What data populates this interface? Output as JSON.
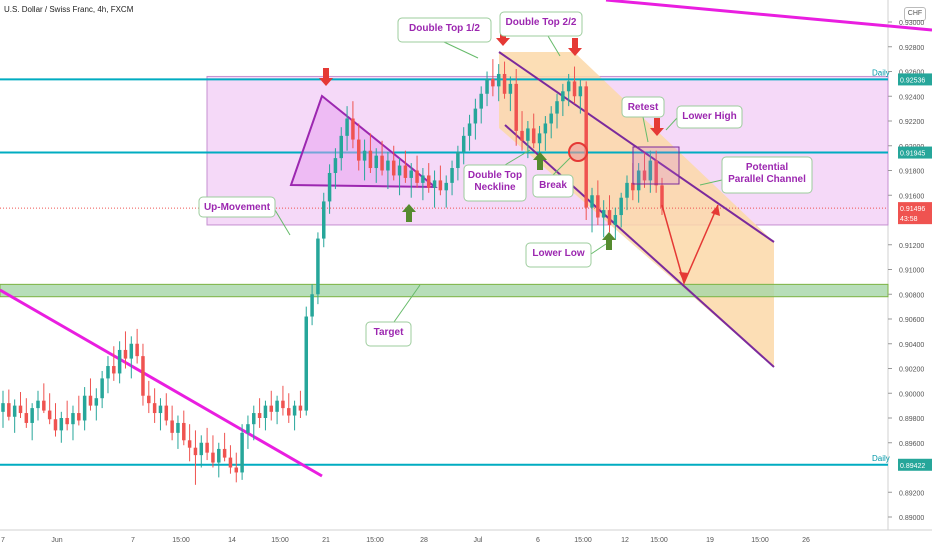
{
  "title": "U.S. Dollar / Swiss Franc, 4h, FXCM",
  "currency": "CHF",
  "chart_data": {
    "type": "candlestick",
    "title": "U.S. Dollar / Swiss Franc, 4h, FXCM",
    "y_ticks": [
      "0.93000",
      "0.92800",
      "0.92600",
      "0.92400",
      "0.92200",
      "0.92000",
      "0.91800",
      "0.91600",
      "0.91200",
      "0.91000",
      "0.90800",
      "0.90600",
      "0.90400",
      "0.90200",
      "0.90000",
      "0.89800",
      "0.89600",
      "0.89200",
      "0.89000"
    ],
    "y_tick_values": [
      0.93,
      0.928,
      0.926,
      0.924,
      0.922,
      0.92,
      0.918,
      0.916,
      0.912,
      0.91,
      0.908,
      0.906,
      0.904,
      0.902,
      0.9,
      0.898,
      0.896,
      0.892,
      0.89
    ],
    "x_ticks": [
      "7",
      "Jun",
      "7",
      "15:00",
      "14",
      "15:00",
      "21",
      "15:00",
      "28",
      "Jul",
      "6",
      "15:00",
      "12",
      "15:00",
      "19",
      "15:00",
      "26"
    ],
    "price_labels": [
      {
        "text": "0.92536",
        "value": 0.92536,
        "bg": "#26a69a"
      },
      {
        "text": "0.91945",
        "value": 0.91945,
        "bg": "#26a69a"
      },
      {
        "text": "0.91496",
        "value": 0.91496,
        "bg": "#ef5350"
      },
      {
        "text": "43:58",
        "value": 0.91415,
        "bg": "#ef5350"
      },
      {
        "text": "0.89422",
        "value": 0.89422,
        "bg": "#26a69a"
      }
    ],
    "levels": [
      {
        "value": 0.92536,
        "label": "Daily",
        "color": "#00acc1"
      },
      {
        "value": 0.91945,
        "label": "",
        "color": "#00acc1"
      },
      {
        "value": 0.89422,
        "label": "Daily",
        "color": "#00acc1"
      }
    ],
    "current_price": 0.91496,
    "zones": {
      "range_top": 0.9256,
      "range_bottom": 0.9136,
      "target_top": 0.9088,
      "target_bottom": 0.9078
    },
    "candles": [
      {
        "o": 0.8985,
        "h": 0.9002,
        "l": 0.8972,
        "c": 0.8992
      },
      {
        "o": 0.8992,
        "h": 0.9003,
        "l": 0.8978,
        "c": 0.8981
      },
      {
        "o": 0.8981,
        "h": 0.8995,
        "l": 0.8968,
        "c": 0.899
      },
      {
        "o": 0.899,
        "h": 0.9001,
        "l": 0.898,
        "c": 0.8984
      },
      {
        "o": 0.8984,
        "h": 0.8996,
        "l": 0.8972,
        "c": 0.8976
      },
      {
        "o": 0.8976,
        "h": 0.8992,
        "l": 0.8962,
        "c": 0.8988
      },
      {
        "o": 0.8988,
        "h": 0.9002,
        "l": 0.8978,
        "c": 0.8994
      },
      {
        "o": 0.8994,
        "h": 0.9008,
        "l": 0.8984,
        "c": 0.8986
      },
      {
        "o": 0.8986,
        "h": 0.9,
        "l": 0.8975,
        "c": 0.8979
      },
      {
        "o": 0.8979,
        "h": 0.8992,
        "l": 0.8965,
        "c": 0.897
      },
      {
        "o": 0.897,
        "h": 0.8985,
        "l": 0.896,
        "c": 0.898
      },
      {
        "o": 0.898,
        "h": 0.8994,
        "l": 0.897,
        "c": 0.8975
      },
      {
        "o": 0.8975,
        "h": 0.899,
        "l": 0.8962,
        "c": 0.8984
      },
      {
        "o": 0.8984,
        "h": 0.8998,
        "l": 0.8974,
        "c": 0.8978
      },
      {
        "o": 0.8978,
        "h": 0.9005,
        "l": 0.897,
        "c": 0.8998
      },
      {
        "o": 0.8998,
        "h": 0.9012,
        "l": 0.8986,
        "c": 0.899
      },
      {
        "o": 0.899,
        "h": 0.9004,
        "l": 0.8978,
        "c": 0.8996
      },
      {
        "o": 0.8996,
        "h": 0.9018,
        "l": 0.8988,
        "c": 0.9012
      },
      {
        "o": 0.9012,
        "h": 0.903,
        "l": 0.9,
        "c": 0.9022
      },
      {
        "o": 0.9022,
        "h": 0.9038,
        "l": 0.901,
        "c": 0.9016
      },
      {
        "o": 0.9016,
        "h": 0.9042,
        "l": 0.9008,
        "c": 0.9035
      },
      {
        "o": 0.9035,
        "h": 0.905,
        "l": 0.902,
        "c": 0.9028
      },
      {
        "o": 0.9028,
        "h": 0.9046,
        "l": 0.9012,
        "c": 0.904
      },
      {
        "o": 0.904,
        "h": 0.9052,
        "l": 0.9024,
        "c": 0.903
      },
      {
        "o": 0.903,
        "h": 0.904,
        "l": 0.899,
        "c": 0.8998
      },
      {
        "o": 0.8998,
        "h": 0.901,
        "l": 0.8984,
        "c": 0.8992
      },
      {
        "o": 0.8992,
        "h": 0.9004,
        "l": 0.8976,
        "c": 0.8984
      },
      {
        "o": 0.8984,
        "h": 0.8996,
        "l": 0.897,
        "c": 0.899
      },
      {
        "o": 0.899,
        "h": 0.9,
        "l": 0.8974,
        "c": 0.8978
      },
      {
        "o": 0.8978,
        "h": 0.899,
        "l": 0.8962,
        "c": 0.8968
      },
      {
        "o": 0.8968,
        "h": 0.8982,
        "l": 0.8955,
        "c": 0.8976
      },
      {
        "o": 0.8976,
        "h": 0.8986,
        "l": 0.8958,
        "c": 0.8962
      },
      {
        "o": 0.8962,
        "h": 0.8975,
        "l": 0.8945,
        "c": 0.8956
      },
      {
        "o": 0.8956,
        "h": 0.897,
        "l": 0.8926,
        "c": 0.895
      },
      {
        "o": 0.895,
        "h": 0.8966,
        "l": 0.894,
        "c": 0.896
      },
      {
        "o": 0.896,
        "h": 0.8972,
        "l": 0.8946,
        "c": 0.8952
      },
      {
        "o": 0.8952,
        "h": 0.8966,
        "l": 0.894,
        "c": 0.8944
      },
      {
        "o": 0.8944,
        "h": 0.896,
        "l": 0.8932,
        "c": 0.8955
      },
      {
        "o": 0.8955,
        "h": 0.8968,
        "l": 0.8945,
        "c": 0.8948
      },
      {
        "o": 0.8948,
        "h": 0.8958,
        "l": 0.8935,
        "c": 0.894
      },
      {
        "o": 0.894,
        "h": 0.8952,
        "l": 0.8928,
        "c": 0.8936
      },
      {
        "o": 0.8936,
        "h": 0.8975,
        "l": 0.893,
        "c": 0.8968
      },
      {
        "o": 0.8968,
        "h": 0.8982,
        "l": 0.8955,
        "c": 0.8975
      },
      {
        "o": 0.8975,
        "h": 0.899,
        "l": 0.8962,
        "c": 0.8984
      },
      {
        "o": 0.8984,
        "h": 0.8996,
        "l": 0.8972,
        "c": 0.898
      },
      {
        "o": 0.898,
        "h": 0.8994,
        "l": 0.897,
        "c": 0.899
      },
      {
        "o": 0.899,
        "h": 0.9002,
        "l": 0.8978,
        "c": 0.8985
      },
      {
        "o": 0.8985,
        "h": 0.8998,
        "l": 0.8975,
        "c": 0.8994
      },
      {
        "o": 0.8994,
        "h": 0.9006,
        "l": 0.8982,
        "c": 0.8988
      },
      {
        "o": 0.8988,
        "h": 0.9,
        "l": 0.8976,
        "c": 0.8982
      },
      {
        "o": 0.8982,
        "h": 0.8994,
        "l": 0.897,
        "c": 0.899
      },
      {
        "o": 0.899,
        "h": 0.9002,
        "l": 0.898,
        "c": 0.8986
      },
      {
        "o": 0.8986,
        "h": 0.907,
        "l": 0.8982,
        "c": 0.9062
      },
      {
        "o": 0.9062,
        "h": 0.9088,
        "l": 0.9055,
        "c": 0.908
      },
      {
        "o": 0.908,
        "h": 0.913,
        "l": 0.9072,
        "c": 0.9125
      },
      {
        "o": 0.9125,
        "h": 0.9162,
        "l": 0.9118,
        "c": 0.9155
      },
      {
        "o": 0.9155,
        "h": 0.9185,
        "l": 0.9145,
        "c": 0.9178
      },
      {
        "o": 0.9178,
        "h": 0.9198,
        "l": 0.9165,
        "c": 0.919
      },
      {
        "o": 0.919,
        "h": 0.9215,
        "l": 0.918,
        "c": 0.9208
      },
      {
        "o": 0.9208,
        "h": 0.9232,
        "l": 0.9196,
        "c": 0.9222
      },
      {
        "o": 0.9222,
        "h": 0.9236,
        "l": 0.9198,
        "c": 0.9205
      },
      {
        "o": 0.9205,
        "h": 0.9218,
        "l": 0.918,
        "c": 0.9188
      },
      {
        "o": 0.9188,
        "h": 0.9205,
        "l": 0.9172,
        "c": 0.9196
      },
      {
        "o": 0.9196,
        "h": 0.921,
        "l": 0.9178,
        "c": 0.9182
      },
      {
        "o": 0.9182,
        "h": 0.9198,
        "l": 0.917,
        "c": 0.9192
      },
      {
        "o": 0.9192,
        "h": 0.9204,
        "l": 0.9176,
        "c": 0.918
      },
      {
        "o": 0.918,
        "h": 0.9195,
        "l": 0.9165,
        "c": 0.9188
      },
      {
        "o": 0.9188,
        "h": 0.92,
        "l": 0.9172,
        "c": 0.9176
      },
      {
        "o": 0.9176,
        "h": 0.919,
        "l": 0.916,
        "c": 0.9184
      },
      {
        "o": 0.9184,
        "h": 0.9196,
        "l": 0.917,
        "c": 0.9174
      },
      {
        "o": 0.9174,
        "h": 0.9186,
        "l": 0.9158,
        "c": 0.918
      },
      {
        "o": 0.918,
        "h": 0.9192,
        "l": 0.9166,
        "c": 0.917
      },
      {
        "o": 0.917,
        "h": 0.9182,
        "l": 0.9156,
        "c": 0.9176
      },
      {
        "o": 0.9176,
        "h": 0.9186,
        "l": 0.9162,
        "c": 0.9166
      },
      {
        "o": 0.9166,
        "h": 0.918,
        "l": 0.915,
        "c": 0.9172
      },
      {
        "o": 0.9172,
        "h": 0.9184,
        "l": 0.916,
        "c": 0.9164
      },
      {
        "o": 0.9164,
        "h": 0.9176,
        "l": 0.915,
        "c": 0.917
      },
      {
        "o": 0.917,
        "h": 0.9188,
        "l": 0.916,
        "c": 0.9182
      },
      {
        "o": 0.9182,
        "h": 0.92,
        "l": 0.9172,
        "c": 0.9195
      },
      {
        "o": 0.9195,
        "h": 0.9215,
        "l": 0.9185,
        "c": 0.9208
      },
      {
        "o": 0.9208,
        "h": 0.9225,
        "l": 0.9196,
        "c": 0.9218
      },
      {
        "o": 0.9218,
        "h": 0.9238,
        "l": 0.9205,
        "c": 0.923
      },
      {
        "o": 0.923,
        "h": 0.9248,
        "l": 0.9218,
        "c": 0.9242
      },
      {
        "o": 0.9242,
        "h": 0.926,
        "l": 0.9232,
        "c": 0.9254
      },
      {
        "o": 0.9254,
        "h": 0.927,
        "l": 0.924,
        "c": 0.9248
      },
      {
        "o": 0.9248,
        "h": 0.9266,
        "l": 0.9236,
        "c": 0.9258
      },
      {
        "o": 0.9258,
        "h": 0.9268,
        "l": 0.9238,
        "c": 0.9242
      },
      {
        "o": 0.9242,
        "h": 0.9256,
        "l": 0.9228,
        "c": 0.925
      },
      {
        "o": 0.925,
        "h": 0.9262,
        "l": 0.92,
        "c": 0.9212
      },
      {
        "o": 0.9212,
        "h": 0.9228,
        "l": 0.9196,
        "c": 0.9204
      },
      {
        "o": 0.9204,
        "h": 0.922,
        "l": 0.919,
        "c": 0.9214
      },
      {
        "o": 0.9214,
        "h": 0.9226,
        "l": 0.9198,
        "c": 0.9202
      },
      {
        "o": 0.9202,
        "h": 0.9216,
        "l": 0.9188,
        "c": 0.921
      },
      {
        "o": 0.921,
        "h": 0.9224,
        "l": 0.9196,
        "c": 0.9218
      },
      {
        "o": 0.9218,
        "h": 0.9232,
        "l": 0.9206,
        "c": 0.9226
      },
      {
        "o": 0.9226,
        "h": 0.9242,
        "l": 0.9214,
        "c": 0.9236
      },
      {
        "o": 0.9236,
        "h": 0.925,
        "l": 0.9224,
        "c": 0.9244
      },
      {
        "o": 0.9244,
        "h": 0.9258,
        "l": 0.9232,
        "c": 0.9252
      },
      {
        "o": 0.9252,
        "h": 0.9264,
        "l": 0.9234,
        "c": 0.924
      },
      {
        "o": 0.924,
        "h": 0.9254,
        "l": 0.9226,
        "c": 0.9248
      },
      {
        "o": 0.9248,
        "h": 0.9252,
        "l": 0.914,
        "c": 0.915
      },
      {
        "o": 0.915,
        "h": 0.9166,
        "l": 0.913,
        "c": 0.916
      },
      {
        "o": 0.916,
        "h": 0.9172,
        "l": 0.9136,
        "c": 0.9142
      },
      {
        "o": 0.9142,
        "h": 0.9156,
        "l": 0.9126,
        "c": 0.9148
      },
      {
        "o": 0.9148,
        "h": 0.916,
        "l": 0.913,
        "c": 0.9136
      },
      {
        "o": 0.9136,
        "h": 0.915,
        "l": 0.9124,
        "c": 0.9144
      },
      {
        "o": 0.9144,
        "h": 0.9162,
        "l": 0.9134,
        "c": 0.9158
      },
      {
        "o": 0.9158,
        "h": 0.9176,
        "l": 0.9148,
        "c": 0.917
      },
      {
        "o": 0.917,
        "h": 0.9186,
        "l": 0.9156,
        "c": 0.9164
      },
      {
        "o": 0.9164,
        "h": 0.9186,
        "l": 0.9154,
        "c": 0.918
      },
      {
        "o": 0.918,
        "h": 0.9194,
        "l": 0.9166,
        "c": 0.9172
      },
      {
        "o": 0.9172,
        "h": 0.9196,
        "l": 0.9162,
        "c": 0.9188
      },
      {
        "o": 0.9188,
        "h": 0.9196,
        "l": 0.9162,
        "c": 0.9168
      },
      {
        "o": 0.9168,
        "h": 0.9174,
        "l": 0.9144,
        "c": 0.915
      }
    ],
    "annotations": [
      {
        "text": "Double Top 1/2",
        "color": "#9c27b0"
      },
      {
        "text": "Double Top 2/2",
        "color": "#9c27b0"
      },
      {
        "text": "Retest",
        "color": "#9c27b0"
      },
      {
        "text": "Lower High",
        "color": "#9c27b0"
      },
      {
        "text": "Double Top",
        "color": "#9c27b0"
      },
      {
        "text": "Neckline",
        "color": "#9c27b0"
      },
      {
        "text": "Break",
        "color": "#9c27b0"
      },
      {
        "text": "Potential",
        "color": "#9c27b0"
      },
      {
        "text": "Parallel Channel",
        "color": "#9c27b0"
      },
      {
        "text": "Up-Movement",
        "color": "#9c27b0"
      },
      {
        "text": "Lower Low",
        "color": "#9c27b0"
      },
      {
        "text": "Target",
        "color": "#9c27b0"
      }
    ],
    "colors": {
      "up": "#26a69a",
      "down": "#ef5350",
      "trendline": "#e91ee0",
      "level": "#00bcd4",
      "range": "#f1ccf5",
      "channel": "#fcd8a8",
      "target": "#a5d6a7"
    }
  }
}
